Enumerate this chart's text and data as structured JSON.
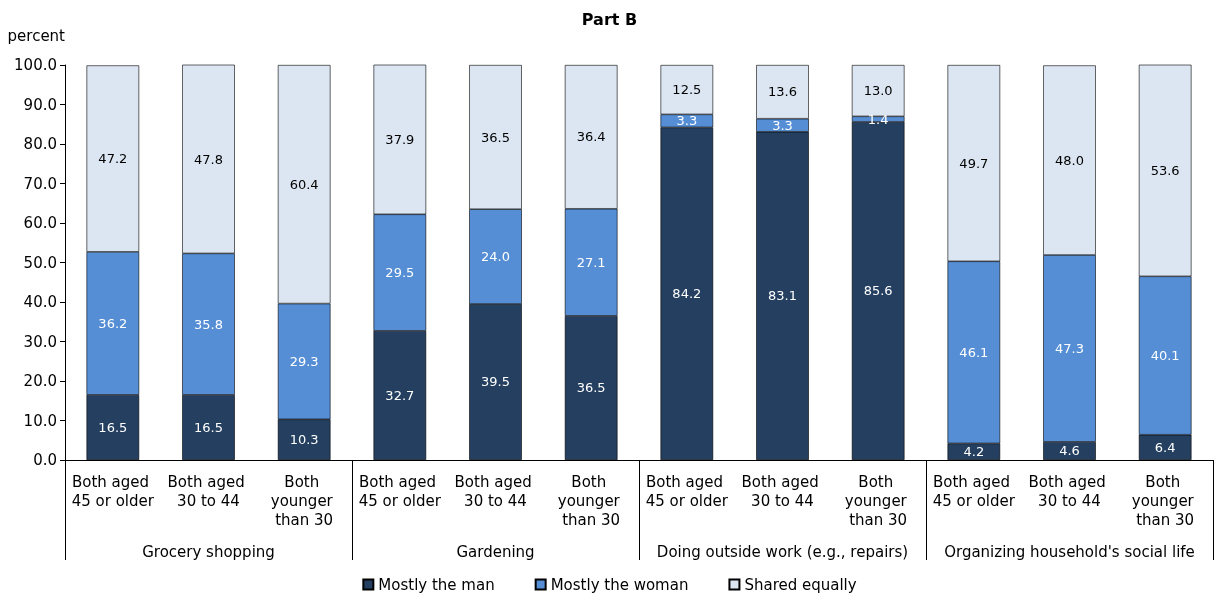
{
  "chart_data": {
    "type": "bar",
    "title": "Part B",
    "ylabel": "percent",
    "stacked": true,
    "legend": "bottom",
    "grid": false,
    "categories": [
      "Both aged 45 or older",
      "Both aged 30 to 44",
      "Both younger than 30",
      "Both aged 45 or older",
      "Both aged 30 to 44",
      "Both younger than 30",
      "Both aged 45 or older",
      "Both aged 30 to 44",
      "Both younger than 30",
      "Both aged 45 or older",
      "Both aged 30 to 44",
      "Both younger than 30"
    ],
    "annotations": [
      "Grocery shopping",
      "Gardening",
      "Doing outside work (e.g., repairs)",
      "Organizing household's social life"
    ],
    "ylim": [
      0,
      100
    ],
    "yticks": [
      {
        "value": 0,
        "label": "0.0"
      },
      {
        "value": 10,
        "label": "10.0"
      },
      {
        "value": 20,
        "label": "20.0"
      },
      {
        "value": 30,
        "label": "30.0"
      },
      {
        "value": 40,
        "label": "40.0"
      },
      {
        "value": 50,
        "label": "50.0"
      },
      {
        "value": 60,
        "label": "60.0"
      },
      {
        "value": 70,
        "label": "70.0"
      },
      {
        "value": 80,
        "label": "80.0"
      },
      {
        "value": 90,
        "label": "90.0"
      },
      {
        "value": 100,
        "label": "100.0"
      }
    ],
    "series": [
      {
        "name": "Mostly the man",
        "color": "#243f60",
        "values": [
          16.5,
          16.5,
          10.3,
          32.7,
          39.5,
          36.5,
          84.2,
          83.1,
          85.6,
          4.2,
          4.6,
          6.4
        ],
        "value_labels": [
          "16.5",
          "16.5",
          "10.3",
          "32.7",
          "39.5",
          "36.5",
          "84.2",
          "83.1",
          "85.6",
          "4.2",
          "4.6",
          "6.4"
        ]
      },
      {
        "name": "Mostly the woman",
        "color": "#558ed5",
        "values": [
          36.2,
          35.8,
          29.3,
          29.5,
          24.0,
          27.1,
          3.3,
          3.3,
          1.4,
          46.1,
          47.3,
          40.1
        ],
        "value_labels": [
          "36.2",
          "35.8",
          "29.3",
          "29.5",
          "24.0",
          "27.1",
          "3.3",
          "3.3",
          "1.4",
          "46.1",
          "47.3",
          "40.1"
        ]
      },
      {
        "name": "Shared equally",
        "color": "#dce6f2",
        "values": [
          47.2,
          47.8,
          60.4,
          37.9,
          36.5,
          36.4,
          12.5,
          13.6,
          13.0,
          49.7,
          48.0,
          53.6
        ],
        "value_labels": [
          "47.2",
          "47.8",
          "60.4",
          "37.9",
          "36.5",
          "36.4",
          "12.5",
          "13.6",
          "13.0",
          "49.7",
          "48.0",
          "53.6"
        ]
      }
    ]
  }
}
